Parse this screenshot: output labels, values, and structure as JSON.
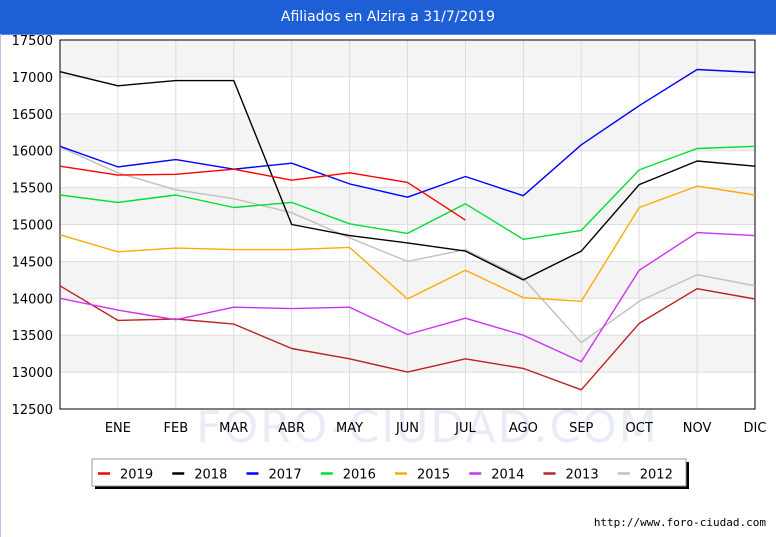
{
  "title": "Afiliados en Alzira a 31/7/2019",
  "watermark": "FORO-CIUDAD.COM",
  "footer_url": "http://www.foro-ciudad.com",
  "chart_data": {
    "type": "line",
    "title": "Afiliados en Alzira a 31/7/2019",
    "xlabel": "",
    "ylabel": "",
    "ylim": [
      12500,
      17500
    ],
    "yticks": [
      12500,
      13000,
      13500,
      14000,
      14500,
      15000,
      15500,
      16000,
      16500,
      17000,
      17500
    ],
    "categories": [
      "ENE",
      "FEB",
      "MAR",
      "ABR",
      "MAY",
      "JUN",
      "JUL",
      "AGO",
      "SEP",
      "OCT",
      "NOV",
      "DIC"
    ],
    "grid": true,
    "legend_position": "bottom",
    "series": [
      {
        "name": "2019",
        "color": "#ff0000",
        "start": 15790,
        "values": [
          15670,
          15680,
          15750,
          15600,
          15700,
          15570,
          15060,
          null,
          null,
          null,
          null,
          null
        ]
      },
      {
        "name": "2018",
        "color": "#000000",
        "start": 17070,
        "values": [
          16880,
          16950,
          16950,
          15000,
          14850,
          14750,
          14640,
          14250,
          14640,
          15540,
          15860,
          15790
        ]
      },
      {
        "name": "2017",
        "color": "#0000ff",
        "start": 16060,
        "values": [
          15780,
          15880,
          15750,
          15830,
          15550,
          15370,
          15650,
          15390,
          16080,
          16610,
          17100,
          17060
        ]
      },
      {
        "name": "2016",
        "color": "#00dd33",
        "start": 15400,
        "values": [
          15300,
          15400,
          15230,
          15300,
          15010,
          14880,
          15280,
          14800,
          14920,
          15740,
          16030,
          16060
        ]
      },
      {
        "name": "2015",
        "color": "#ffaa00",
        "start": 14860,
        "values": [
          14630,
          14680,
          14660,
          14660,
          14690,
          13990,
          14380,
          14010,
          13960,
          15230,
          15520,
          15400
        ]
      },
      {
        "name": "2014",
        "color": "#cc33ee",
        "start": 14000,
        "values": [
          13840,
          13710,
          13880,
          13860,
          13880,
          13510,
          13730,
          13500,
          13140,
          14380,
          14890,
          14850
        ]
      },
      {
        "name": "2013",
        "color": "#bb2222",
        "start": 14170,
        "values": [
          13700,
          13720,
          13650,
          13320,
          13180,
          13000,
          13180,
          13050,
          12760,
          13660,
          14130,
          13990
        ]
      },
      {
        "name": "2012",
        "color": "#c0c0c0",
        "start": 16050,
        "values": [
          15700,
          15470,
          15350,
          15160,
          14820,
          14500,
          14660,
          14270,
          13400,
          13960,
          14320,
          14170
        ]
      }
    ]
  }
}
